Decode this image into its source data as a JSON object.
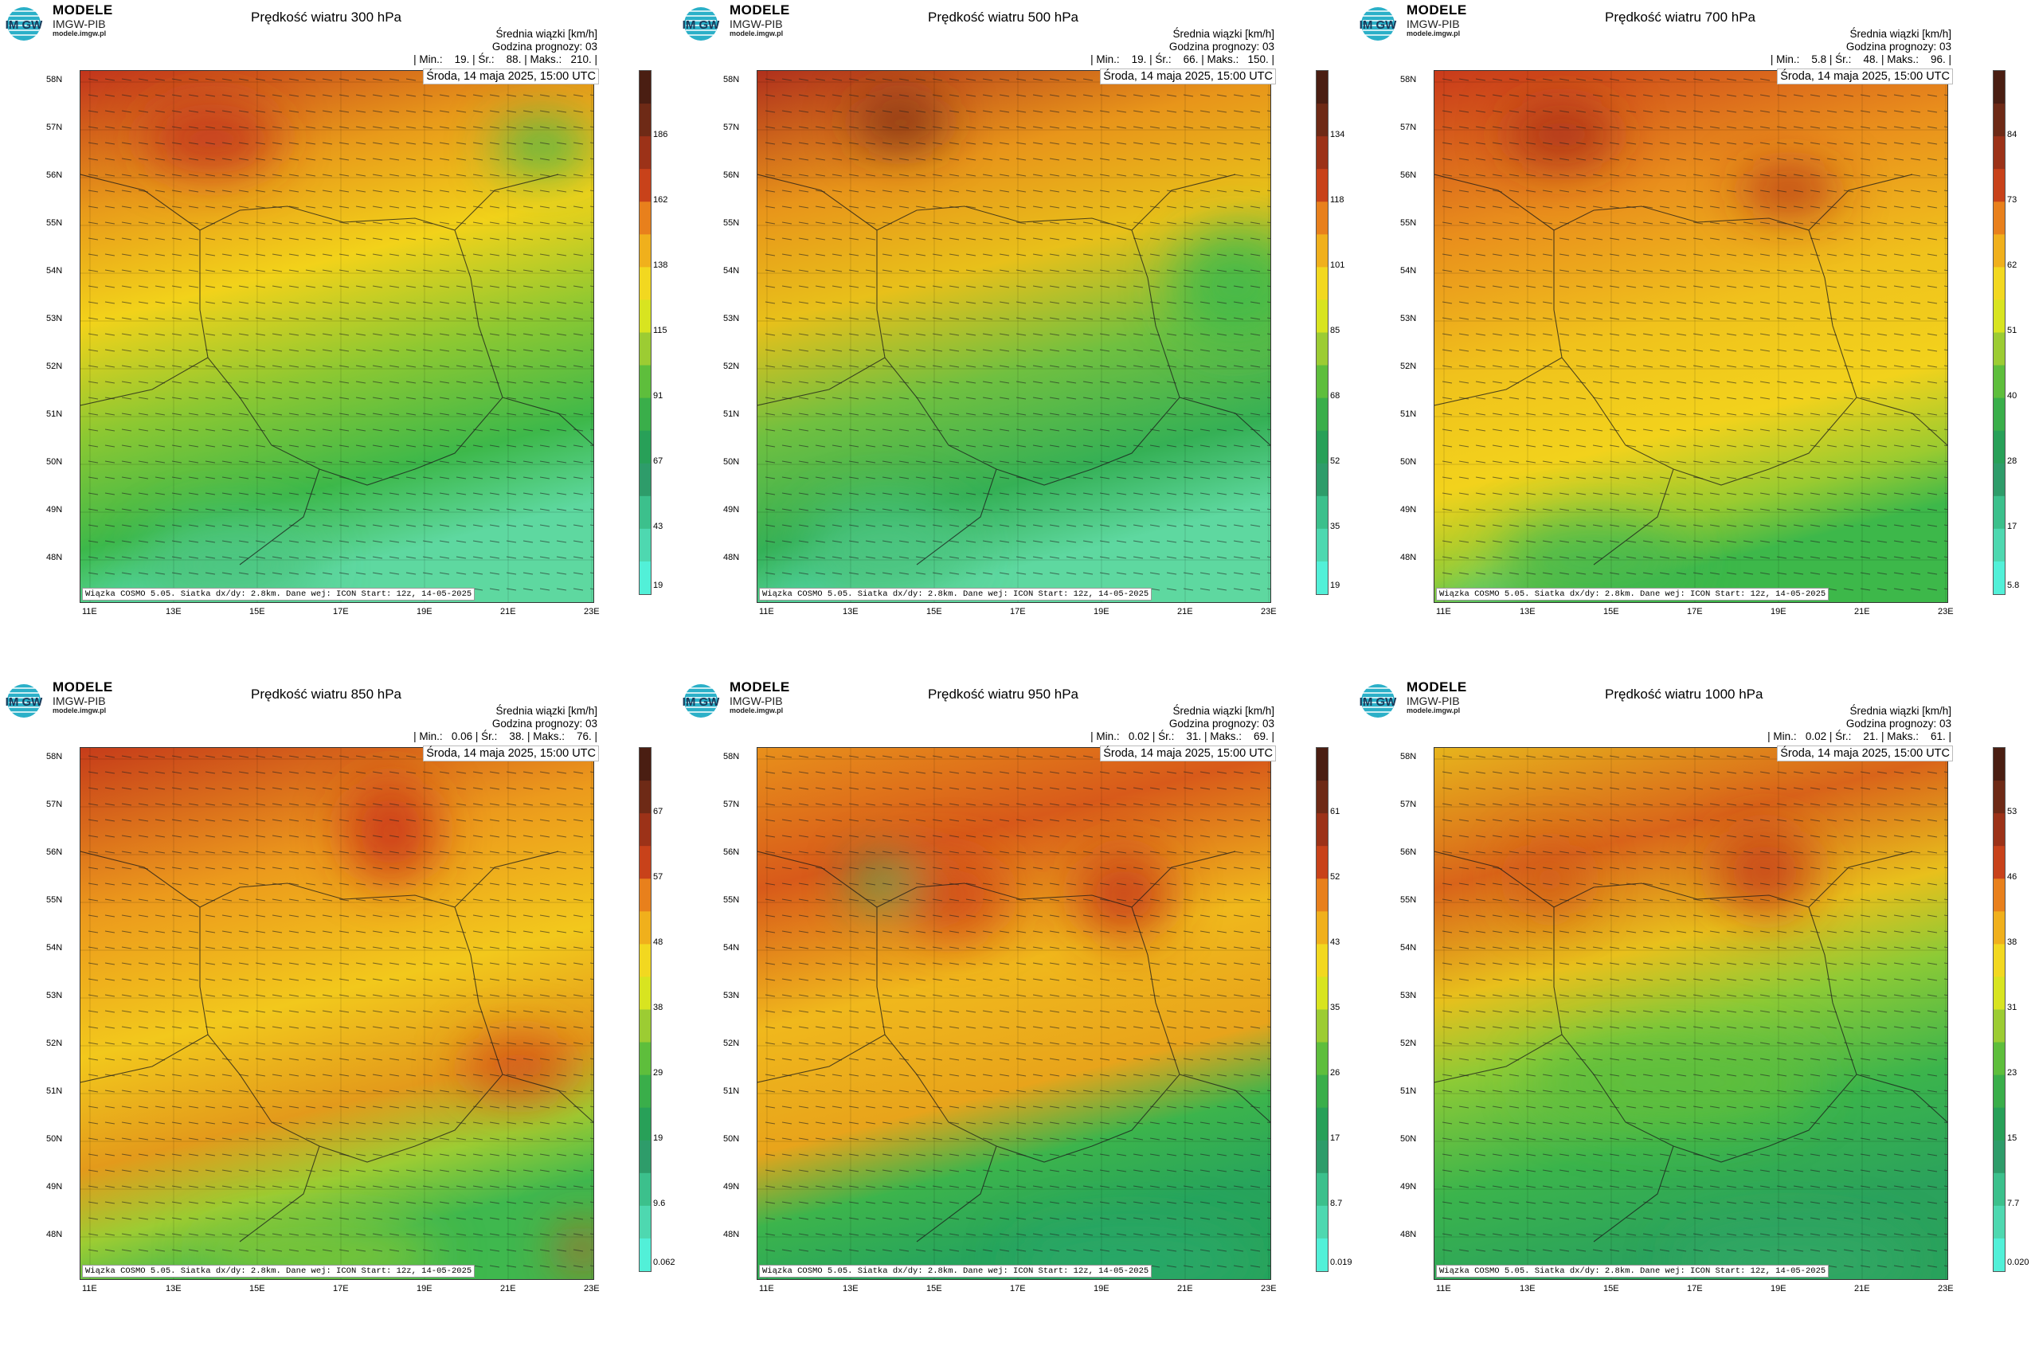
{
  "brand": {
    "line1": "MODELE",
    "line2": "IMGW-PIB",
    "line3": "modele.imgw.pl"
  },
  "common": {
    "units_label": "Średnia wiązki [km/h]",
    "forecast_hour": "Godzina prognozy: 03",
    "date": "Środa, 14 maja 2025, 15:00 UTC",
    "footer": "Wiązka COSMO 5.05. Siatka dx/dy: 2.8km. Dane wej: ICON Start: 12z, 14-05-2025",
    "lat_labels": [
      "58N",
      "57N",
      "56N",
      "55N",
      "54N",
      "53N",
      "52N",
      "51N",
      "50N",
      "49N",
      "48N"
    ],
    "lon_labels": [
      "11E",
      "13E",
      "15E",
      "17E",
      "19E",
      "21E",
      "23E"
    ]
  },
  "panels": [
    {
      "title": "Prędkość wiatru 300 hPa",
      "stats": "| Min.:    19. | Śr.:    88. | Maks.:   210. |",
      "scale": [
        "186",
        "162",
        "138",
        "115",
        "91",
        "67",
        "43",
        "19"
      ]
    },
    {
      "title": "Prędkość wiatru 500 hPa",
      "stats": "| Min.:    19. | Śr.:    66. | Maks.:   150. |",
      "scale": [
        "134",
        "118",
        "101",
        "85",
        "68",
        "52",
        "35",
        "19"
      ]
    },
    {
      "title": "Prędkość wiatru 700 hPa",
      "stats": "| Min.:    5.8 | Śr.:    48. | Maks.:    96. |",
      "scale": [
        "84",
        "73",
        "62",
        "51",
        "40",
        "28",
        "17",
        "5.8"
      ]
    },
    {
      "title": "Prędkość wiatru 850 hPa",
      "stats": "| Min.:   0.06 | Śr.:    38. | Maks.:    76. |",
      "scale": [
        "67",
        "57",
        "48",
        "38",
        "29",
        "19",
        "9.6",
        "0.062"
      ]
    },
    {
      "title": "Prędkość wiatru 950 hPa",
      "stats": "| Min.:   0.02 | Śr.:    31. | Maks.:    69. |",
      "scale": [
        "61",
        "52",
        "43",
        "35",
        "26",
        "17",
        "8.7",
        "0.019"
      ]
    },
    {
      "title": "Prędkość wiatru 1000 hPa",
      "stats": "| Min.:   0.02 | Śr.:    21. | Maks.:    61. |",
      "scale": [
        "53",
        "46",
        "38",
        "31",
        "23",
        "15",
        "7.7",
        "0.020"
      ]
    }
  ]
}
